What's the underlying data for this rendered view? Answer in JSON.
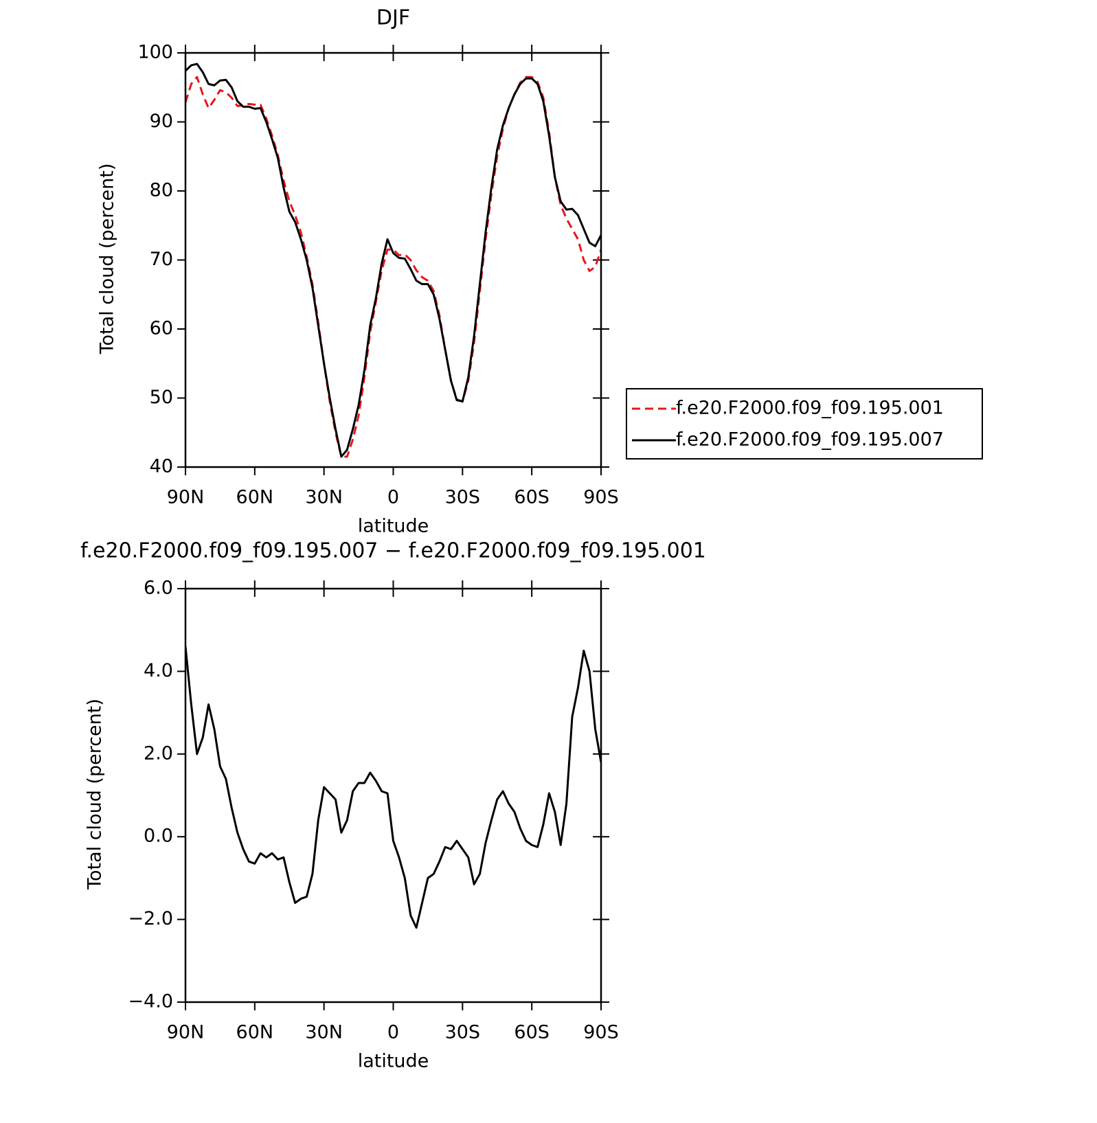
{
  "chart_data": [
    {
      "type": "line",
      "title": "DJF",
      "xlabel": "latitude",
      "ylabel": "Total cloud (percent)",
      "x": [
        90,
        87.5,
        85,
        82.5,
        80,
        77.5,
        75,
        72.5,
        70,
        67.5,
        65,
        62.5,
        60,
        57.5,
        55,
        52.5,
        50,
        47.5,
        45,
        42.5,
        40,
        37.5,
        35,
        32.5,
        30,
        27.5,
        25,
        22.5,
        20,
        17.5,
        15,
        12.5,
        10,
        7.5,
        5,
        2.5,
        0,
        -2.5,
        -5,
        -7.5,
        -10,
        -12.5,
        -15,
        -17.5,
        -20,
        -22.5,
        -25,
        -27.5,
        -30,
        -32.5,
        -35,
        -37.5,
        -40,
        -42.5,
        -45,
        -47.5,
        -50,
        -52.5,
        -55,
        -57.5,
        -60,
        -62.5,
        -65,
        -67.5,
        -70,
        -72.5,
        -75,
        -77.5,
        -80,
        -82.5,
        -85,
        -87.5,
        -90
      ],
      "series": [
        {
          "name": "f.e20.F2000.f09_f09.195.001",
          "color": "#e8161a",
          "linestyle": "dashed",
          "values": [
            92.8,
            95.5,
            96.5,
            94,
            92,
            93.2,
            94.6,
            94.3,
            93.5,
            92.3,
            92.4,
            92.6,
            92.5,
            92.5,
            90.5,
            88,
            85.2,
            81.5,
            78.5,
            76.5,
            74,
            70.5,
            66.5,
            61,
            55,
            49.5,
            45,
            41.5,
            41.5,
            44,
            47.5,
            53,
            59.5,
            64,
            68.5,
            71.5,
            71.5,
            70.7,
            70.8,
            70,
            68.5,
            67.5,
            67,
            65.5,
            62,
            57,
            52.5,
            49.8,
            49.5,
            52.5,
            58,
            65.5,
            73,
            79.5,
            85,
            89,
            92,
            94,
            95.7,
            96.5,
            96.5,
            95.8,
            93.5,
            88.5,
            82,
            78,
            76,
            74.5,
            73,
            70,
            68.4,
            69,
            71.5
          ]
        },
        {
          "name": "f.e20.F2000.f09_f09.195.007",
          "color": "#000000",
          "linestyle": "solid",
          "values": [
            97.4,
            98.2,
            98.4,
            97.2,
            95.5,
            95.3,
            96,
            96.1,
            95,
            93,
            92.2,
            92.2,
            91.9,
            92,
            90,
            87.5,
            84.8,
            80.5,
            77,
            75.5,
            73,
            70,
            66,
            60.5,
            55,
            50,
            45.5,
            41.5,
            42.5,
            45.5,
            49,
            54,
            60.5,
            64.5,
            69.5,
            73,
            71,
            70.3,
            70.2,
            68.7,
            67,
            66.5,
            66.5,
            65,
            61.5,
            57,
            52.5,
            49.7,
            49.5,
            53,
            59,
            66.5,
            74,
            80.5,
            86,
            89.5,
            92,
            94,
            95.5,
            96.3,
            96.3,
            95.5,
            93,
            88,
            82,
            78.5,
            77.3,
            77.4,
            76.5,
            74.5,
            72.5,
            72,
            73.6
          ]
        }
      ],
      "xlim": [
        90,
        -90
      ],
      "xticks": [
        {
          "value": 90,
          "label": "90N"
        },
        {
          "value": 60,
          "label": "60N"
        },
        {
          "value": 30,
          "label": "30N"
        },
        0,
        {
          "value": -30,
          "label": "30S"
        },
        {
          "value": -60,
          "label": "60S"
        },
        {
          "value": -90,
          "label": "90S"
        }
      ],
      "ylim": [
        40,
        100
      ],
      "yticks": [
        40,
        50,
        60,
        70,
        80,
        90,
        100
      ],
      "grid": false,
      "legend": "right"
    },
    {
      "type": "line",
      "title": "f.e20.F2000.f09_f09.195.007 − f.e20.F2000.f09_f09.195.001",
      "xlabel": "latitude",
      "ylabel": "Total cloud (percent)",
      "x": [
        90,
        87.5,
        85,
        82.5,
        80,
        77.5,
        75,
        72.5,
        70,
        67.5,
        65,
        62.5,
        60,
        57.5,
        55,
        52.5,
        50,
        47.5,
        45,
        42.5,
        40,
        37.5,
        35,
        32.5,
        30,
        27.5,
        25,
        22.5,
        20,
        17.5,
        15,
        12.5,
        10,
        7.5,
        5,
        2.5,
        0,
        -2.5,
        -5,
        -7.5,
        -10,
        -12.5,
        -15,
        -17.5,
        -20,
        -22.5,
        -25,
        -27.5,
        -30,
        -32.5,
        -35,
        -37.5,
        -40,
        -42.5,
        -45,
        -47.5,
        -50,
        -52.5,
        -55,
        -57.5,
        -60,
        -62.5,
        -65,
        -67.5,
        -70,
        -72.5,
        -75,
        -77.5,
        -80,
        -82.5,
        -85,
        -87.5,
        -90
      ],
      "values": [
        4.6,
        3.2,
        2,
        2.4,
        3.2,
        2.6,
        1.7,
        1.4,
        0.7,
        0.1,
        -0.3,
        -0.6,
        -0.65,
        -0.4,
        -0.5,
        -0.4,
        -0.55,
        -0.5,
        -1.1,
        -1.6,
        -1.5,
        -1.45,
        -0.9,
        0.4,
        1.2,
        1.05,
        0.9,
        0.1,
        0.4,
        1.1,
        1.3,
        1.3,
        1.55,
        1.35,
        1.1,
        1.05,
        -0.1,
        -0.5,
        -1,
        -1.9,
        -2.2,
        -1.6,
        -1,
        -0.9,
        -0.6,
        -0.25,
        -0.3,
        -0.1,
        -0.3,
        -0.5,
        -1.15,
        -0.9,
        -0.15,
        0.4,
        0.9,
        1.1,
        0.8,
        0.6,
        0.2,
        -0.1,
        -0.2,
        -0.25,
        0.3,
        1.05,
        0.6,
        -0.2,
        0.8,
        2.9,
        3.6,
        4.5,
        4,
        2.6,
        1.8
      ],
      "color": "#000000",
      "xlim": [
        90,
        -90
      ],
      "xticks": [
        {
          "value": 90,
          "label": "90N"
        },
        {
          "value": 60,
          "label": "60N"
        },
        {
          "value": 30,
          "label": "30N"
        },
        0,
        {
          "value": -30,
          "label": "30S"
        },
        {
          "value": -60,
          "label": "60S"
        },
        {
          "value": -90,
          "label": "90S"
        }
      ],
      "ylim": [
        -4,
        6
      ],
      "yticks": [
        {
          "value": -4,
          "label": "−4.0"
        },
        {
          "value": -2,
          "label": "−2.0"
        },
        {
          "value": 0,
          "label": "0.0"
        },
        {
          "value": 2,
          "label": "2.0"
        },
        {
          "value": 4,
          "label": "4.0"
        },
        {
          "value": 6,
          "label": "6.0"
        }
      ],
      "grid": false
    }
  ]
}
